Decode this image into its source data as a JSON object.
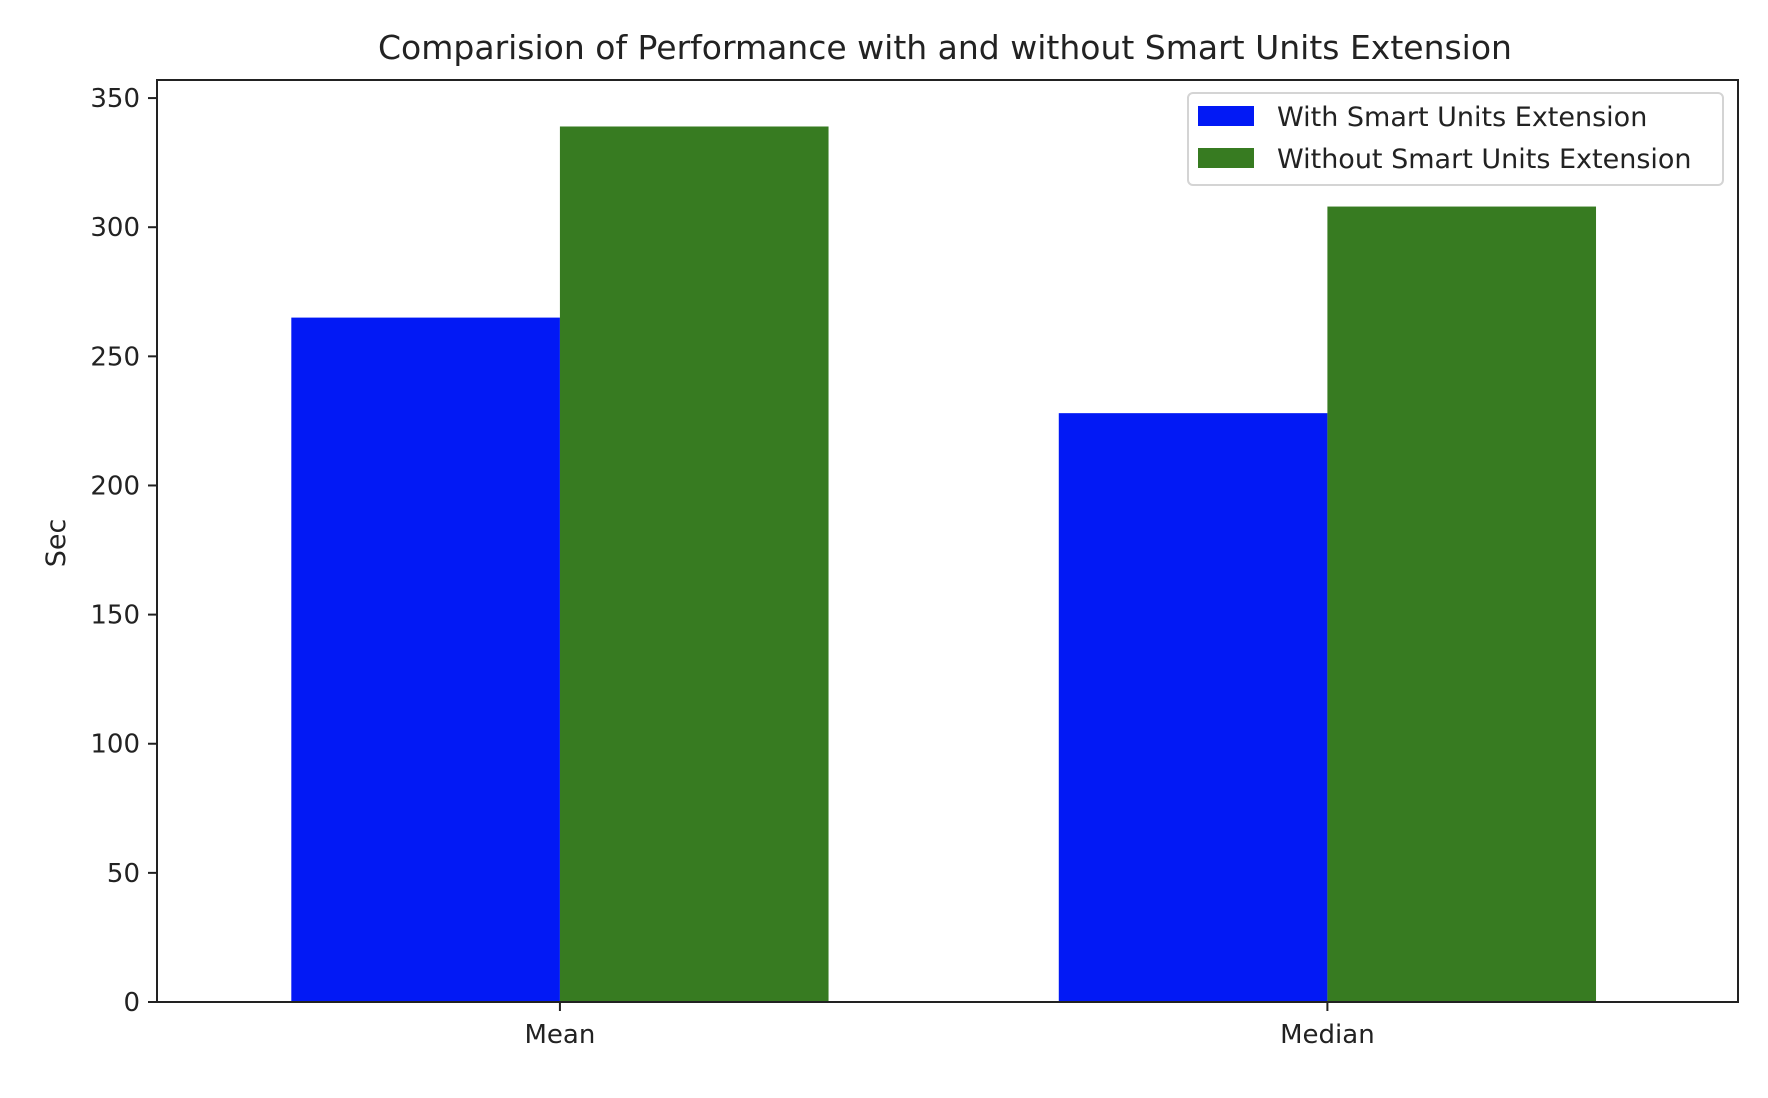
{
  "chart_data": {
    "type": "bar",
    "title": "Comparision of Performance with and without Smart Units Extension",
    "xlabel": "",
    "ylabel": "Sec",
    "categories": [
      "Mean",
      "Median"
    ],
    "series": [
      {
        "name": "With Smart Units Extension",
        "color": "#0219f5",
        "values": [
          265,
          228
        ]
      },
      {
        "name": "Without Smart Units Extension",
        "color": "#377b21",
        "values": [
          339,
          308
        ]
      }
    ],
    "ylim": [
      0,
      357
    ],
    "yticks": [
      0,
      50,
      100,
      150,
      200,
      250,
      300,
      350
    ],
    "grid": false,
    "legend_position": "top-right"
  }
}
